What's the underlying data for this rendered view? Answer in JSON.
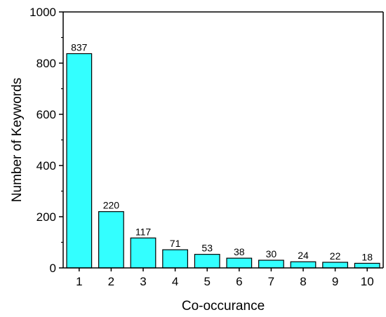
{
  "chart_data": {
    "type": "bar",
    "title": "",
    "xlabel": "Co-occurance",
    "ylabel": "Number of Keywords",
    "categories": [
      "1",
      "2",
      "3",
      "4",
      "5",
      "6",
      "7",
      "8",
      "9",
      "10"
    ],
    "values": [
      837,
      220,
      117,
      71,
      53,
      38,
      30,
      24,
      22,
      18
    ],
    "ylim": [
      0,
      1000
    ],
    "yticks": [
      0,
      200,
      400,
      600,
      800,
      1000
    ],
    "grid": false,
    "legend": "none",
    "colors": {
      "bar_fill": "#33FFFF",
      "bar_stroke": "#000000",
      "axis": "#000000"
    }
  }
}
